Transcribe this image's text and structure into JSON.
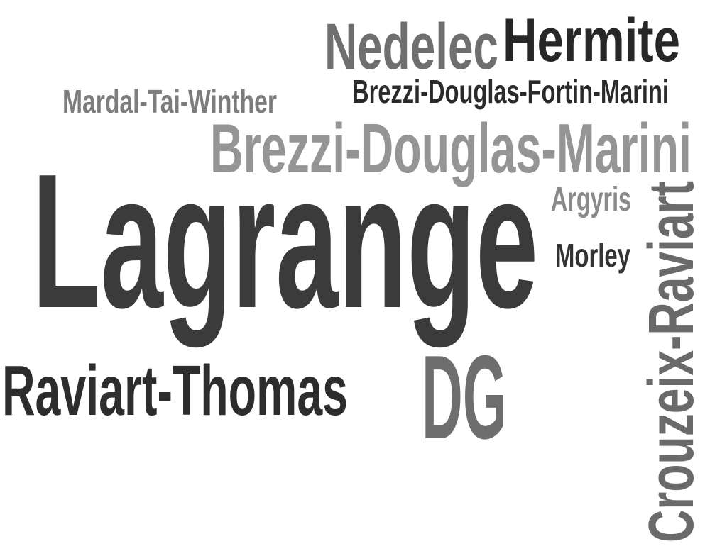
{
  "cloud": {
    "words": {
      "lagrange": {
        "text": "Lagrange",
        "color": "#3b3b3b"
      },
      "brezzi_douglas_marini": {
        "text": "Brezzi-Douglas-Marini",
        "color": "#959595"
      },
      "raviart_thomas": {
        "text": "Raviart-Thomas",
        "color": "#2d2d2d"
      },
      "dg": {
        "text": "DG",
        "color": "#6e6e6e"
      },
      "crouzeix_raviart": {
        "text": "Crouzeix-Raviart",
        "color": "#6a6a6a"
      },
      "nedelec": {
        "text": "Nedelec",
        "color": "#6f6f6f"
      },
      "hermite": {
        "text": "Hermite",
        "color": "#272727"
      },
      "brezzi_douglas_fortin_marini": {
        "text": "Brezzi-Douglas-Fortin-Marini",
        "color": "#2a2a2a"
      },
      "mardal_tai_winther": {
        "text": "Mardal-Tai-Winther",
        "color": "#7d7d7d"
      },
      "argyris": {
        "text": "Argyris",
        "color": "#8a8a8a"
      },
      "morley": {
        "text": "Morley",
        "color": "#333333"
      }
    }
  }
}
